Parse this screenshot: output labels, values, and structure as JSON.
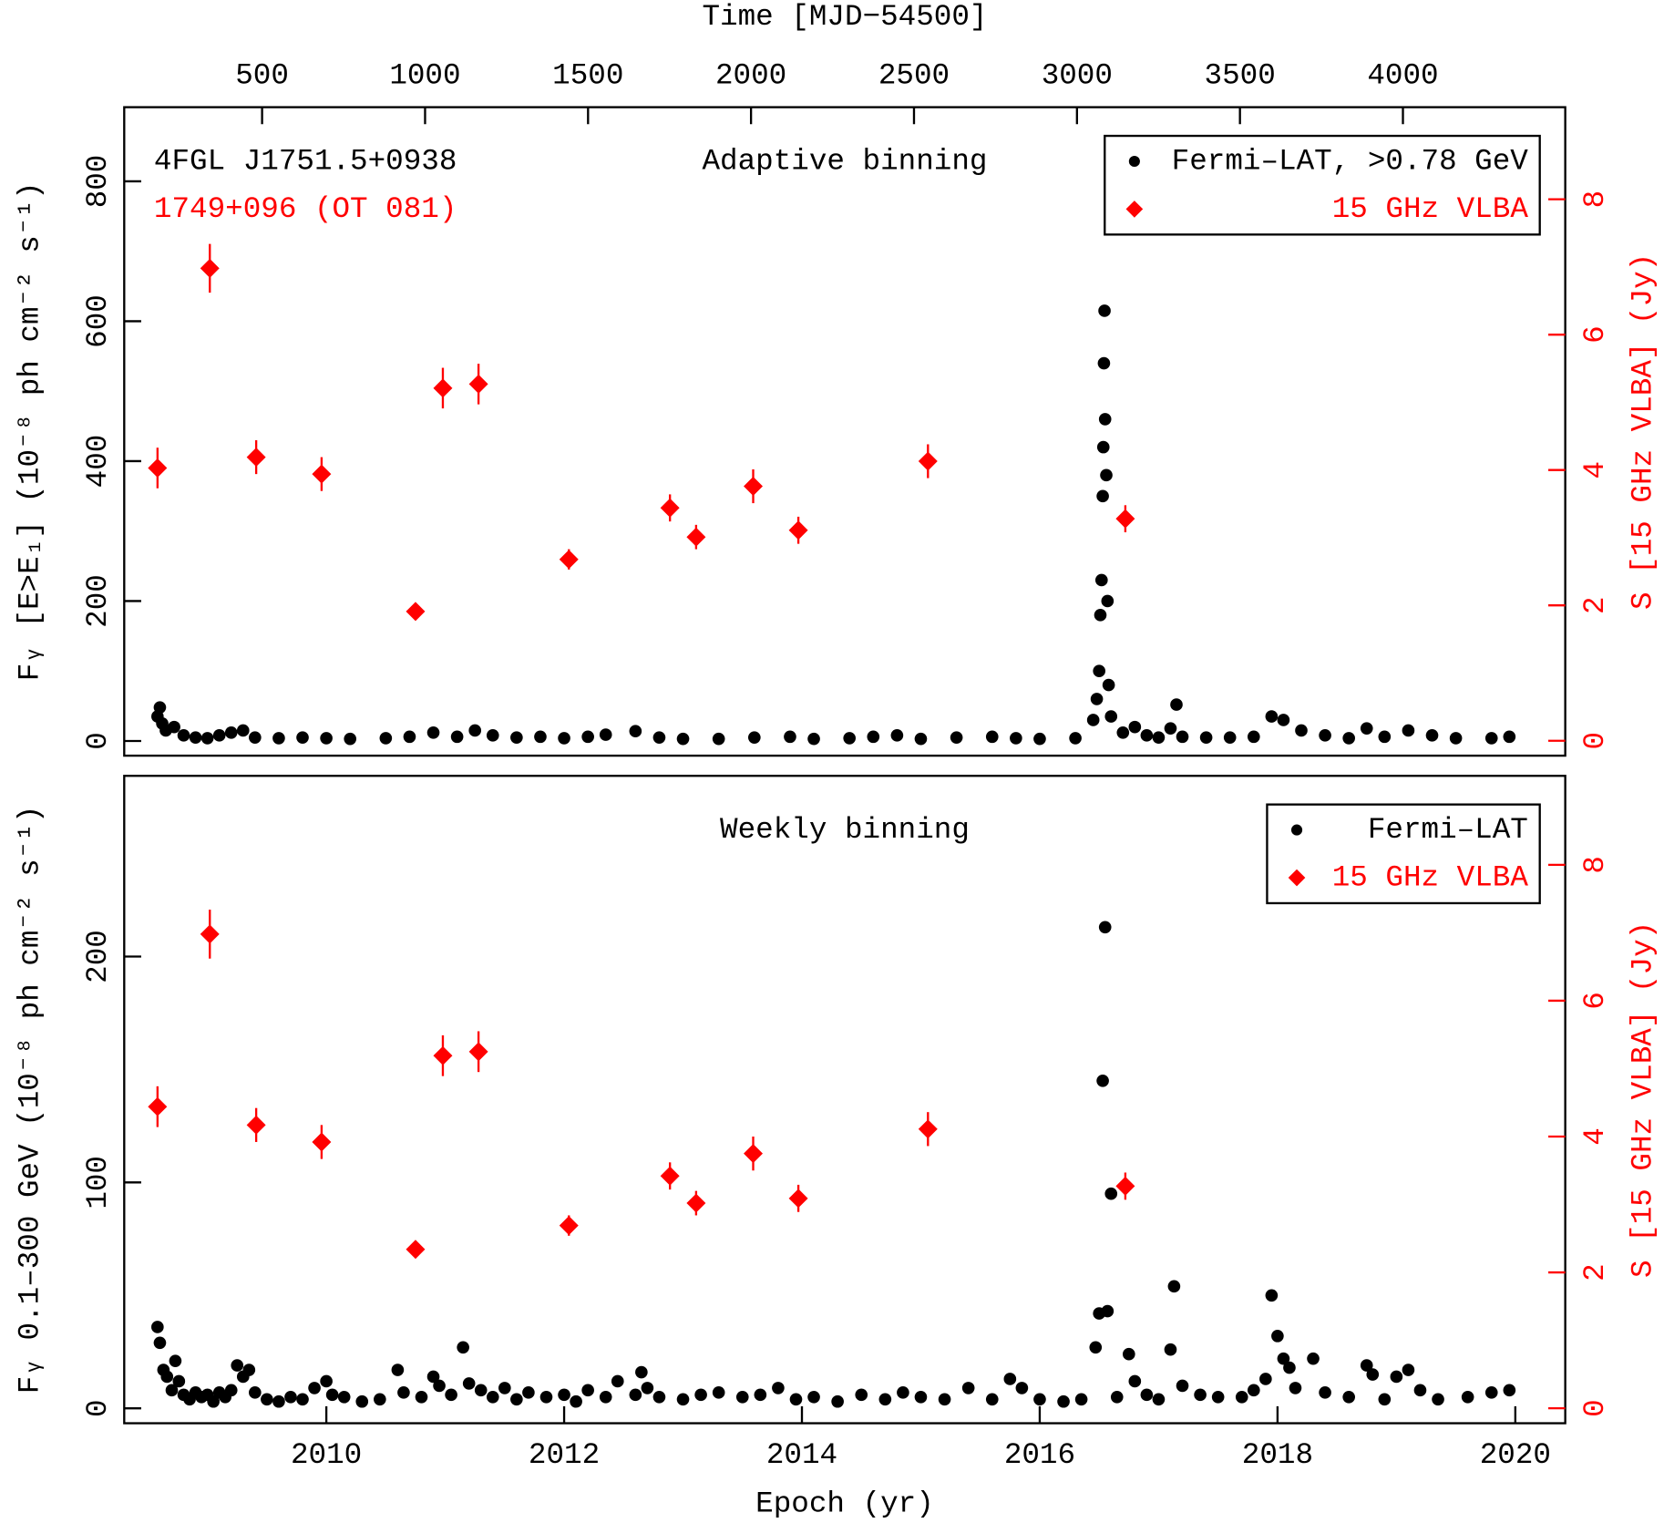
{
  "chart_data": [
    {
      "type": "scatter",
      "title": "Adaptive binning",
      "annotations": [
        {
          "text": "4FGL J1751.5+0938",
          "color": "#000000"
        },
        {
          "text": "1749+096 (OT 081)",
          "color": "#ff0000"
        }
      ],
      "x2label": "Time [MJD−54500]",
      "x2lim": [
        77,
        4498
      ],
      "x2ticks": [
        500,
        1000,
        1500,
        2000,
        2500,
        3000,
        3500,
        4000
      ],
      "ylabel": "Fᵧ [E>E₁] (10⁻⁸ ph cm⁻² s⁻¹)",
      "y2label": "S [15 GHz VLBA] (Jy)",
      "xlim": [
        2008.3,
        2020.42
      ],
      "ylim": [
        -21,
        906
      ],
      "yticks": [
        0,
        200,
        400,
        600,
        800
      ],
      "y2lim": [
        -0.22,
        9.36
      ],
      "y2ticks": [
        0,
        2,
        4,
        6,
        8
      ],
      "legend": "upper right",
      "series": [
        {
          "name": "Fermi–LAT, >0.78 GeV",
          "color": "#000000",
          "marker": "circle",
          "x": [
            2008.58,
            2008.6,
            2008.62,
            2008.65,
            2008.72,
            2008.8,
            2008.9,
            2009.0,
            2009.1,
            2009.2,
            2009.3,
            2009.4,
            2009.6,
            2009.8,
            2010.0,
            2010.2,
            2010.5,
            2010.7,
            2010.9,
            2011.1,
            2011.25,
            2011.4,
            2011.6,
            2011.8,
            2012.0,
            2012.2,
            2012.35,
            2012.6,
            2012.8,
            2013.0,
            2013.3,
            2013.6,
            2013.9,
            2014.1,
            2014.4,
            2014.6,
            2014.8,
            2015.0,
            2015.3,
            2015.6,
            2015.8,
            2016.0,
            2016.3,
            2016.45,
            2016.48,
            2016.5,
            2016.51,
            2016.52,
            2016.53,
            2016.535,
            2016.54,
            2016.545,
            2016.55,
            2016.56,
            2016.57,
            2016.58,
            2016.6,
            2016.7,
            2016.8,
            2016.9,
            2017.0,
            2017.1,
            2017.15,
            2017.2,
            2017.4,
            2017.6,
            2017.8,
            2017.95,
            2018.05,
            2018.2,
            2018.4,
            2018.6,
            2018.75,
            2018.9,
            2019.1,
            2019.3,
            2019.5,
            2019.8,
            2019.95
          ],
          "values": [
            35,
            48,
            25,
            15,
            20,
            8,
            5,
            4,
            8,
            12,
            15,
            5,
            4,
            5,
            4,
            3,
            4,
            6,
            12,
            6,
            15,
            8,
            5,
            6,
            4,
            6,
            9,
            14,
            5,
            3,
            3,
            5,
            6,
            3,
            4,
            6,
            8,
            3,
            5,
            6,
            4,
            3,
            4,
            30,
            60,
            100,
            180,
            230,
            350,
            420,
            540,
            615,
            460,
            380,
            200,
            80,
            35,
            12,
            20,
            8,
            5,
            18,
            52,
            6,
            5,
            5,
            6,
            35,
            30,
            15,
            8,
            4,
            18,
            6,
            15,
            8,
            4,
            4,
            6
          ]
        },
        {
          "name": "15 GHz VLBA",
          "color": "#ff0000",
          "marker": "diamond",
          "axis": "y2",
          "x": [
            2008.58,
            2009.02,
            2009.41,
            2009.96,
            2010.75,
            2010.98,
            2011.28,
            2012.04,
            2012.89,
            2013.11,
            2013.59,
            2013.97,
            2015.06,
            2016.72
          ],
          "values": [
            4.03,
            6.98,
            4.19,
            3.94,
            1.91,
            5.21,
            5.27,
            2.68,
            3.44,
            3.01,
            3.76,
            3.11,
            4.13,
            3.28
          ],
          "errors": [
            0.3,
            0.36,
            0.25,
            0.25,
            0.12,
            0.3,
            0.3,
            0.15,
            0.2,
            0.18,
            0.25,
            0.2,
            0.25,
            0.2
          ]
        }
      ]
    },
    {
      "type": "scatter",
      "title": "Weekly binning",
      "xlabel": "Epoch (yr)",
      "xlim": [
        2008.3,
        2020.42
      ],
      "xticks": [
        2010,
        2012,
        2014,
        2016,
        2018,
        2020
      ],
      "ylabel": "Fᵧ 0.1–300 GeV (10⁻⁸ ph cm⁻² s⁻¹)",
      "y2label": "S [15 GHz VLBA] (Jy)",
      "ylim": [
        -6.6,
        280
      ],
      "yticks": [
        0,
        100,
        200
      ],
      "y2lim": [
        -0.22,
        9.31
      ],
      "y2ticks": [
        0,
        2,
        4,
        6,
        8
      ],
      "legend": "upper right",
      "series": [
        {
          "name": "Fermi–LAT",
          "color": "#000000",
          "marker": "circle",
          "x": [
            2008.58,
            2008.6,
            2008.63,
            2008.66,
            2008.7,
            2008.73,
            2008.76,
            2008.8,
            2008.85,
            2008.9,
            2008.95,
            2009.0,
            2009.05,
            2009.1,
            2009.15,
            2009.2,
            2009.25,
            2009.3,
            2009.35,
            2009.4,
            2009.5,
            2009.6,
            2009.7,
            2009.8,
            2009.9,
            2010.0,
            2010.05,
            2010.15,
            2010.3,
            2010.45,
            2010.6,
            2010.65,
            2010.8,
            2010.9,
            2010.95,
            2011.05,
            2011.15,
            2011.2,
            2011.3,
            2011.4,
            2011.5,
            2011.6,
            2011.7,
            2011.85,
            2012.0,
            2012.1,
            2012.2,
            2012.35,
            2012.45,
            2012.6,
            2012.65,
            2012.7,
            2012.8,
            2013.0,
            2013.15,
            2013.3,
            2013.5,
            2013.65,
            2013.8,
            2013.95,
            2014.1,
            2014.3,
            2014.5,
            2014.7,
            2014.85,
            2015.0,
            2015.2,
            2015.4,
            2015.6,
            2015.75,
            2015.85,
            2016.0,
            2016.2,
            2016.35,
            2016.47,
            2016.5,
            2016.53,
            2016.55,
            2016.57,
            2016.6,
            2016.65,
            2016.75,
            2016.8,
            2016.9,
            2017.0,
            2017.1,
            2017.13,
            2017.2,
            2017.35,
            2017.5,
            2017.7,
            2017.8,
            2017.9,
            2017.95,
            2018.0,
            2018.05,
            2018.1,
            2018.15,
            2018.3,
            2018.4,
            2018.6,
            2018.75,
            2018.8,
            2018.9,
            2019.0,
            2019.1,
            2019.2,
            2019.35,
            2019.6,
            2019.8,
            2019.95
          ],
          "values": [
            36,
            29,
            17,
            14,
            8,
            21,
            12,
            6,
            4,
            7,
            5,
            6,
            3,
            7,
            5,
            8,
            19,
            14,
            17,
            7,
            4,
            3,
            5,
            4,
            9,
            12,
            6,
            5,
            3,
            4,
            17,
            7,
            5,
            14,
            10,
            6,
            27,
            11,
            8,
            5,
            9,
            4,
            7,
            5,
            6,
            3,
            8,
            5,
            12,
            6,
            16,
            9,
            5,
            4,
            6,
            7,
            5,
            6,
            9,
            4,
            5,
            3,
            6,
            4,
            7,
            5,
            4,
            9,
            4,
            13,
            9,
            4,
            3,
            4,
            27,
            42,
            145,
            213,
            43,
            95,
            5,
            24,
            12,
            6,
            4,
            26,
            54,
            10,
            6,
            5,
            5,
            8,
            13,
            50,
            32,
            22,
            18,
            9,
            22,
            7,
            5,
            19,
            15,
            4,
            14,
            17,
            8,
            4,
            5,
            7,
            8
          ]
        },
        {
          "name": "15 GHz VLBA",
          "color": "#ff0000",
          "marker": "diamond",
          "axis": "y2",
          "x": [
            2008.58,
            2009.02,
            2009.41,
            2009.96,
            2010.75,
            2010.98,
            2011.28,
            2012.04,
            2012.89,
            2013.11,
            2013.59,
            2013.97,
            2015.06,
            2016.72
          ],
          "values": [
            4.44,
            6.98,
            4.17,
            3.92,
            2.34,
            5.19,
            5.25,
            2.69,
            3.42,
            3.02,
            3.75,
            3.09,
            4.11,
            3.27
          ],
          "errors": [
            0.3,
            0.36,
            0.25,
            0.25,
            0.12,
            0.3,
            0.3,
            0.15,
            0.2,
            0.18,
            0.25,
            0.2,
            0.25,
            0.2
          ]
        }
      ]
    }
  ]
}
